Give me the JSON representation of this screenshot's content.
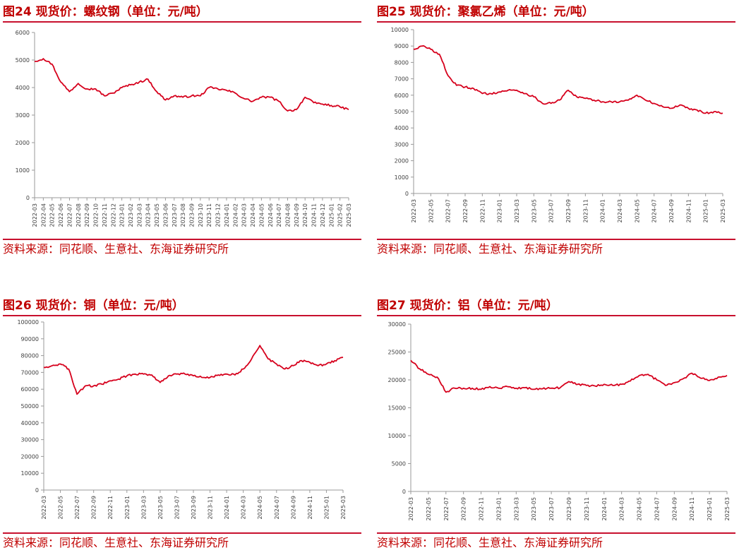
{
  "source_text": "资料来源：同花顺、生意社、东海证券研究所",
  "colors": {
    "accent": "#c00000",
    "series": "#d6001c",
    "rule": "#c8102e"
  },
  "charts": [
    {
      "title": "图24  现货价：螺纹钢（单位：元/吨）"
    },
    {
      "title": "图25  现货价：聚氯乙烯（单位：元/吨）"
    },
    {
      "title": "图26  现货价：铜（单位：元/吨）"
    },
    {
      "title": "图27  现货价：铝（单位：元/吨）"
    }
  ],
  "chart_data": [
    {
      "type": "line",
      "title": "图24  现货价：螺纹钢（单位：元/吨）",
      "ylim": [
        0,
        6000
      ],
      "yticks": [
        0,
        1000,
        2000,
        3000,
        4000,
        5000,
        6000
      ],
      "x_start": "2022-03",
      "x_end": "2025-03",
      "xticks": [
        "2022-03",
        "2022-04",
        "2022-05",
        "2022-06",
        "2022-07",
        "2022-08",
        "2022-09",
        "2022-10",
        "2022-11",
        "2022-12",
        "2023-01",
        "2023-02",
        "2023-03",
        "2023-04",
        "2023-05",
        "2023-06",
        "2023-07",
        "2023-08",
        "2023-09",
        "2023-10",
        "2023-11",
        "2023-12",
        "2024-01",
        "2024-02",
        "2024-03",
        "2024-04",
        "2024-05",
        "2024-06",
        "2024-07",
        "2024-08",
        "2024-09",
        "2024-10",
        "2024-11",
        "2024-12",
        "2025-01",
        "2025-02",
        "2025-03"
      ],
      "grid": false,
      "series": [
        {
          "x": [
            "2022-03",
            "2022-04",
            "2022-05",
            "2022-06",
            "2022-07",
            "2022-08",
            "2022-09",
            "2022-10",
            "2022-11",
            "2022-12",
            "2023-01",
            "2023-02",
            "2023-03",
            "2023-04",
            "2023-05",
            "2023-06",
            "2023-07",
            "2023-08",
            "2023-09",
            "2023-10",
            "2023-11",
            "2023-12",
            "2024-01",
            "2024-02",
            "2024-03",
            "2024-04",
            "2024-05",
            "2024-06",
            "2024-07",
            "2024-08",
            "2024-09",
            "2024-10",
            "2024-11",
            "2024-12",
            "2025-01",
            "2025-02",
            "2025-03"
          ],
          "y": [
            4950,
            5050,
            4850,
            4200,
            3850,
            4150,
            3950,
            3950,
            3700,
            3800,
            4000,
            4100,
            4200,
            4300,
            3850,
            3550,
            3700,
            3650,
            3700,
            3700,
            4000,
            3950,
            3900,
            3800,
            3600,
            3500,
            3650,
            3650,
            3500,
            3150,
            3200,
            3650,
            3450,
            3400,
            3350,
            3300,
            3200
          ]
        }
      ]
    },
    {
      "type": "line",
      "title": "图25  现货价：聚氯乙烯（单位：元/吨）",
      "ylim": [
        0,
        10000
      ],
      "yticks": [
        0,
        1000,
        2000,
        3000,
        4000,
        5000,
        6000,
        7000,
        8000,
        9000,
        10000
      ],
      "x_start": "2022-03",
      "x_end": "2025-03",
      "xticks": [
        "2022-03",
        "2022-05",
        "2022-07",
        "2022-09",
        "2022-11",
        "2023-01",
        "2023-03",
        "2023-05",
        "2023-07",
        "2023-09",
        "2023-11",
        "2024-01",
        "2024-03",
        "2024-05",
        "2024-07",
        "2024-09",
        "2024-11",
        "2025-01",
        "2025-03"
      ],
      "grid": false,
      "series": [
        {
          "x": [
            "2022-03",
            "2022-04",
            "2022-05",
            "2022-06",
            "2022-07",
            "2022-08",
            "2022-09",
            "2022-10",
            "2022-11",
            "2022-12",
            "2023-01",
            "2023-02",
            "2023-03",
            "2023-04",
            "2023-05",
            "2023-06",
            "2023-07",
            "2023-08",
            "2023-09",
            "2023-10",
            "2023-11",
            "2023-12",
            "2024-01",
            "2024-02",
            "2024-03",
            "2024-04",
            "2024-05",
            "2024-06",
            "2024-07",
            "2024-08",
            "2024-09",
            "2024-10",
            "2024-11",
            "2024-12",
            "2025-01",
            "2025-02",
            "2025-03"
          ],
          "y": [
            8800,
            9000,
            8800,
            8500,
            7200,
            6600,
            6500,
            6400,
            6100,
            6100,
            6200,
            6300,
            6300,
            6100,
            5900,
            5500,
            5500,
            5700,
            6300,
            5900,
            5800,
            5700,
            5600,
            5600,
            5600,
            5700,
            6000,
            5700,
            5500,
            5300,
            5200,
            5400,
            5200,
            5100,
            4900,
            5000,
            4900
          ]
        }
      ]
    },
    {
      "type": "line",
      "title": "图26  现货价：铜（单位：元/吨）",
      "ylim": [
        0,
        100000
      ],
      "yticks": [
        0,
        10000,
        20000,
        30000,
        40000,
        50000,
        60000,
        70000,
        80000,
        90000,
        100000
      ],
      "x_start": "2022-03",
      "x_end": "2025-03",
      "xticks": [
        "2022-03",
        "2022-05",
        "2022-07",
        "2022-09",
        "2022-11",
        "2023-01",
        "2023-03",
        "2023-05",
        "2023-07",
        "2023-09",
        "2023-11",
        "2024-01",
        "2024-03",
        "2024-05",
        "2024-07",
        "2024-09",
        "2024-11",
        "2025-01",
        "2025-03"
      ],
      "grid": false,
      "series": [
        {
          "x": [
            "2022-03",
            "2022-04",
            "2022-05",
            "2022-06",
            "2022-07",
            "2022-08",
            "2022-09",
            "2022-10",
            "2022-11",
            "2022-12",
            "2023-01",
            "2023-02",
            "2023-03",
            "2023-04",
            "2023-05",
            "2023-06",
            "2023-07",
            "2023-08",
            "2023-09",
            "2023-10",
            "2023-11",
            "2023-12",
            "2024-01",
            "2024-02",
            "2024-03",
            "2024-04",
            "2024-05",
            "2024-06",
            "2024-07",
            "2024-08",
            "2024-09",
            "2024-10",
            "2024-11",
            "2024-12",
            "2025-01",
            "2025-02",
            "2025-03"
          ],
          "y": [
            73000,
            74000,
            75000,
            72000,
            57000,
            62000,
            62000,
            63000,
            65000,
            66000,
            68000,
            69000,
            69000,
            68500,
            64000,
            68000,
            69000,
            69000,
            68000,
            67000,
            67000,
            68500,
            69000,
            68500,
            72000,
            78000,
            86000,
            78000,
            75000,
            72000,
            74000,
            77000,
            76000,
            74000,
            75000,
            77000,
            79000
          ]
        }
      ]
    },
    {
      "type": "line",
      "title": "图27  现货价：铝（单位：元/吨）",
      "ylim": [
        0,
        30000
      ],
      "yticks": [
        0,
        5000,
        10000,
        15000,
        20000,
        25000,
        30000
      ],
      "x_start": "2022-03",
      "x_end": "2025-03",
      "xticks": [
        "2022-03",
        "2022-05",
        "2022-07",
        "2022-09",
        "2022-11",
        "2023-01",
        "2023-03",
        "2023-05",
        "2023-07",
        "2023-09",
        "2023-11",
        "2024-01",
        "2024-03",
        "2024-05",
        "2024-07",
        "2024-09",
        "2024-11",
        "2025-01",
        "2025-03"
      ],
      "grid": false,
      "series": [
        {
          "x": [
            "2022-03",
            "2022-04",
            "2022-05",
            "2022-06",
            "2022-07",
            "2022-08",
            "2022-09",
            "2022-10",
            "2022-11",
            "2022-12",
            "2023-01",
            "2023-02",
            "2023-03",
            "2023-04",
            "2023-05",
            "2023-06",
            "2023-07",
            "2023-08",
            "2023-09",
            "2023-10",
            "2023-11",
            "2023-12",
            "2024-01",
            "2024-02",
            "2024-03",
            "2024-04",
            "2024-05",
            "2024-06",
            "2024-07",
            "2024-08",
            "2024-09",
            "2024-10",
            "2024-11",
            "2024-12",
            "2025-01",
            "2025-02",
            "2025-03"
          ],
          "y": [
            23500,
            22000,
            21000,
            20500,
            17800,
            18500,
            18500,
            18500,
            18300,
            18800,
            18500,
            18800,
            18500,
            18600,
            18300,
            18400,
            18500,
            18600,
            19700,
            19200,
            19000,
            18900,
            19200,
            19000,
            19200,
            19800,
            20800,
            21000,
            20000,
            19000,
            19500,
            20200,
            21200,
            20300,
            19900,
            20500,
            20800
          ]
        }
      ]
    }
  ]
}
